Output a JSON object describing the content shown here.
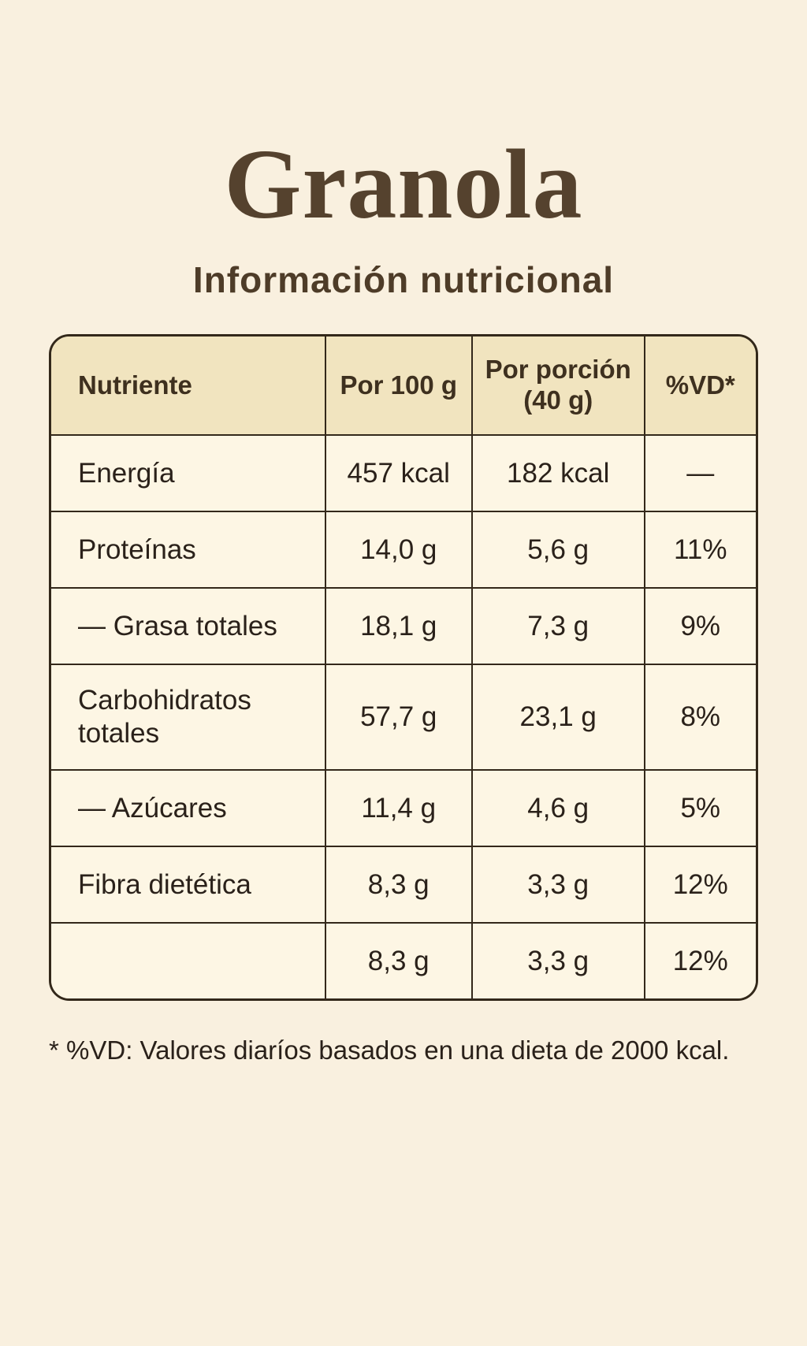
{
  "title": "Granola",
  "subtitle": "Información nutricional",
  "colors": {
    "page_background": "#f9f0df",
    "table_background": "#fdf6e4",
    "header_background": "#f1e4bf",
    "border": "#33281a",
    "title_text": "#55422e",
    "body_text": "#2a211a"
  },
  "table": {
    "columns": {
      "nutrient": "Nutriente",
      "per_100g": "Por 100 g",
      "per_portion": "Por porción (40 g)",
      "vd": "%VD*"
    },
    "rows": [
      {
        "nutrient": "Energía",
        "per_100g": "457 kcal",
        "per_portion": "182 kcal",
        "vd": "—"
      },
      {
        "nutrient": "Proteínas",
        "per_100g": "14,0 g",
        "per_portion": "5,6 g",
        "vd": "11%"
      },
      {
        "nutrient": "— Grasa totales",
        "per_100g": "18,1 g",
        "per_portion": "7,3 g",
        "vd": "9%"
      },
      {
        "nutrient": "Carbohidratos totales",
        "per_100g": "57,7 g",
        "per_portion": "23,1 g",
        "vd": "8%"
      },
      {
        "nutrient": "— Azúcares",
        "per_100g": "11,4 g",
        "per_portion": "4,6 g",
        "vd": "5%"
      },
      {
        "nutrient": "Fibra dietética",
        "per_100g": "8,3 g",
        "per_portion": "3,3 g",
        "vd": "12%"
      },
      {
        "nutrient": "",
        "per_100g": "8,3 g",
        "per_portion": "3,3 g",
        "vd": "12%"
      }
    ]
  },
  "footnote": "* %VD: Valores diaríos basados en una dieta de 2000 kcal."
}
